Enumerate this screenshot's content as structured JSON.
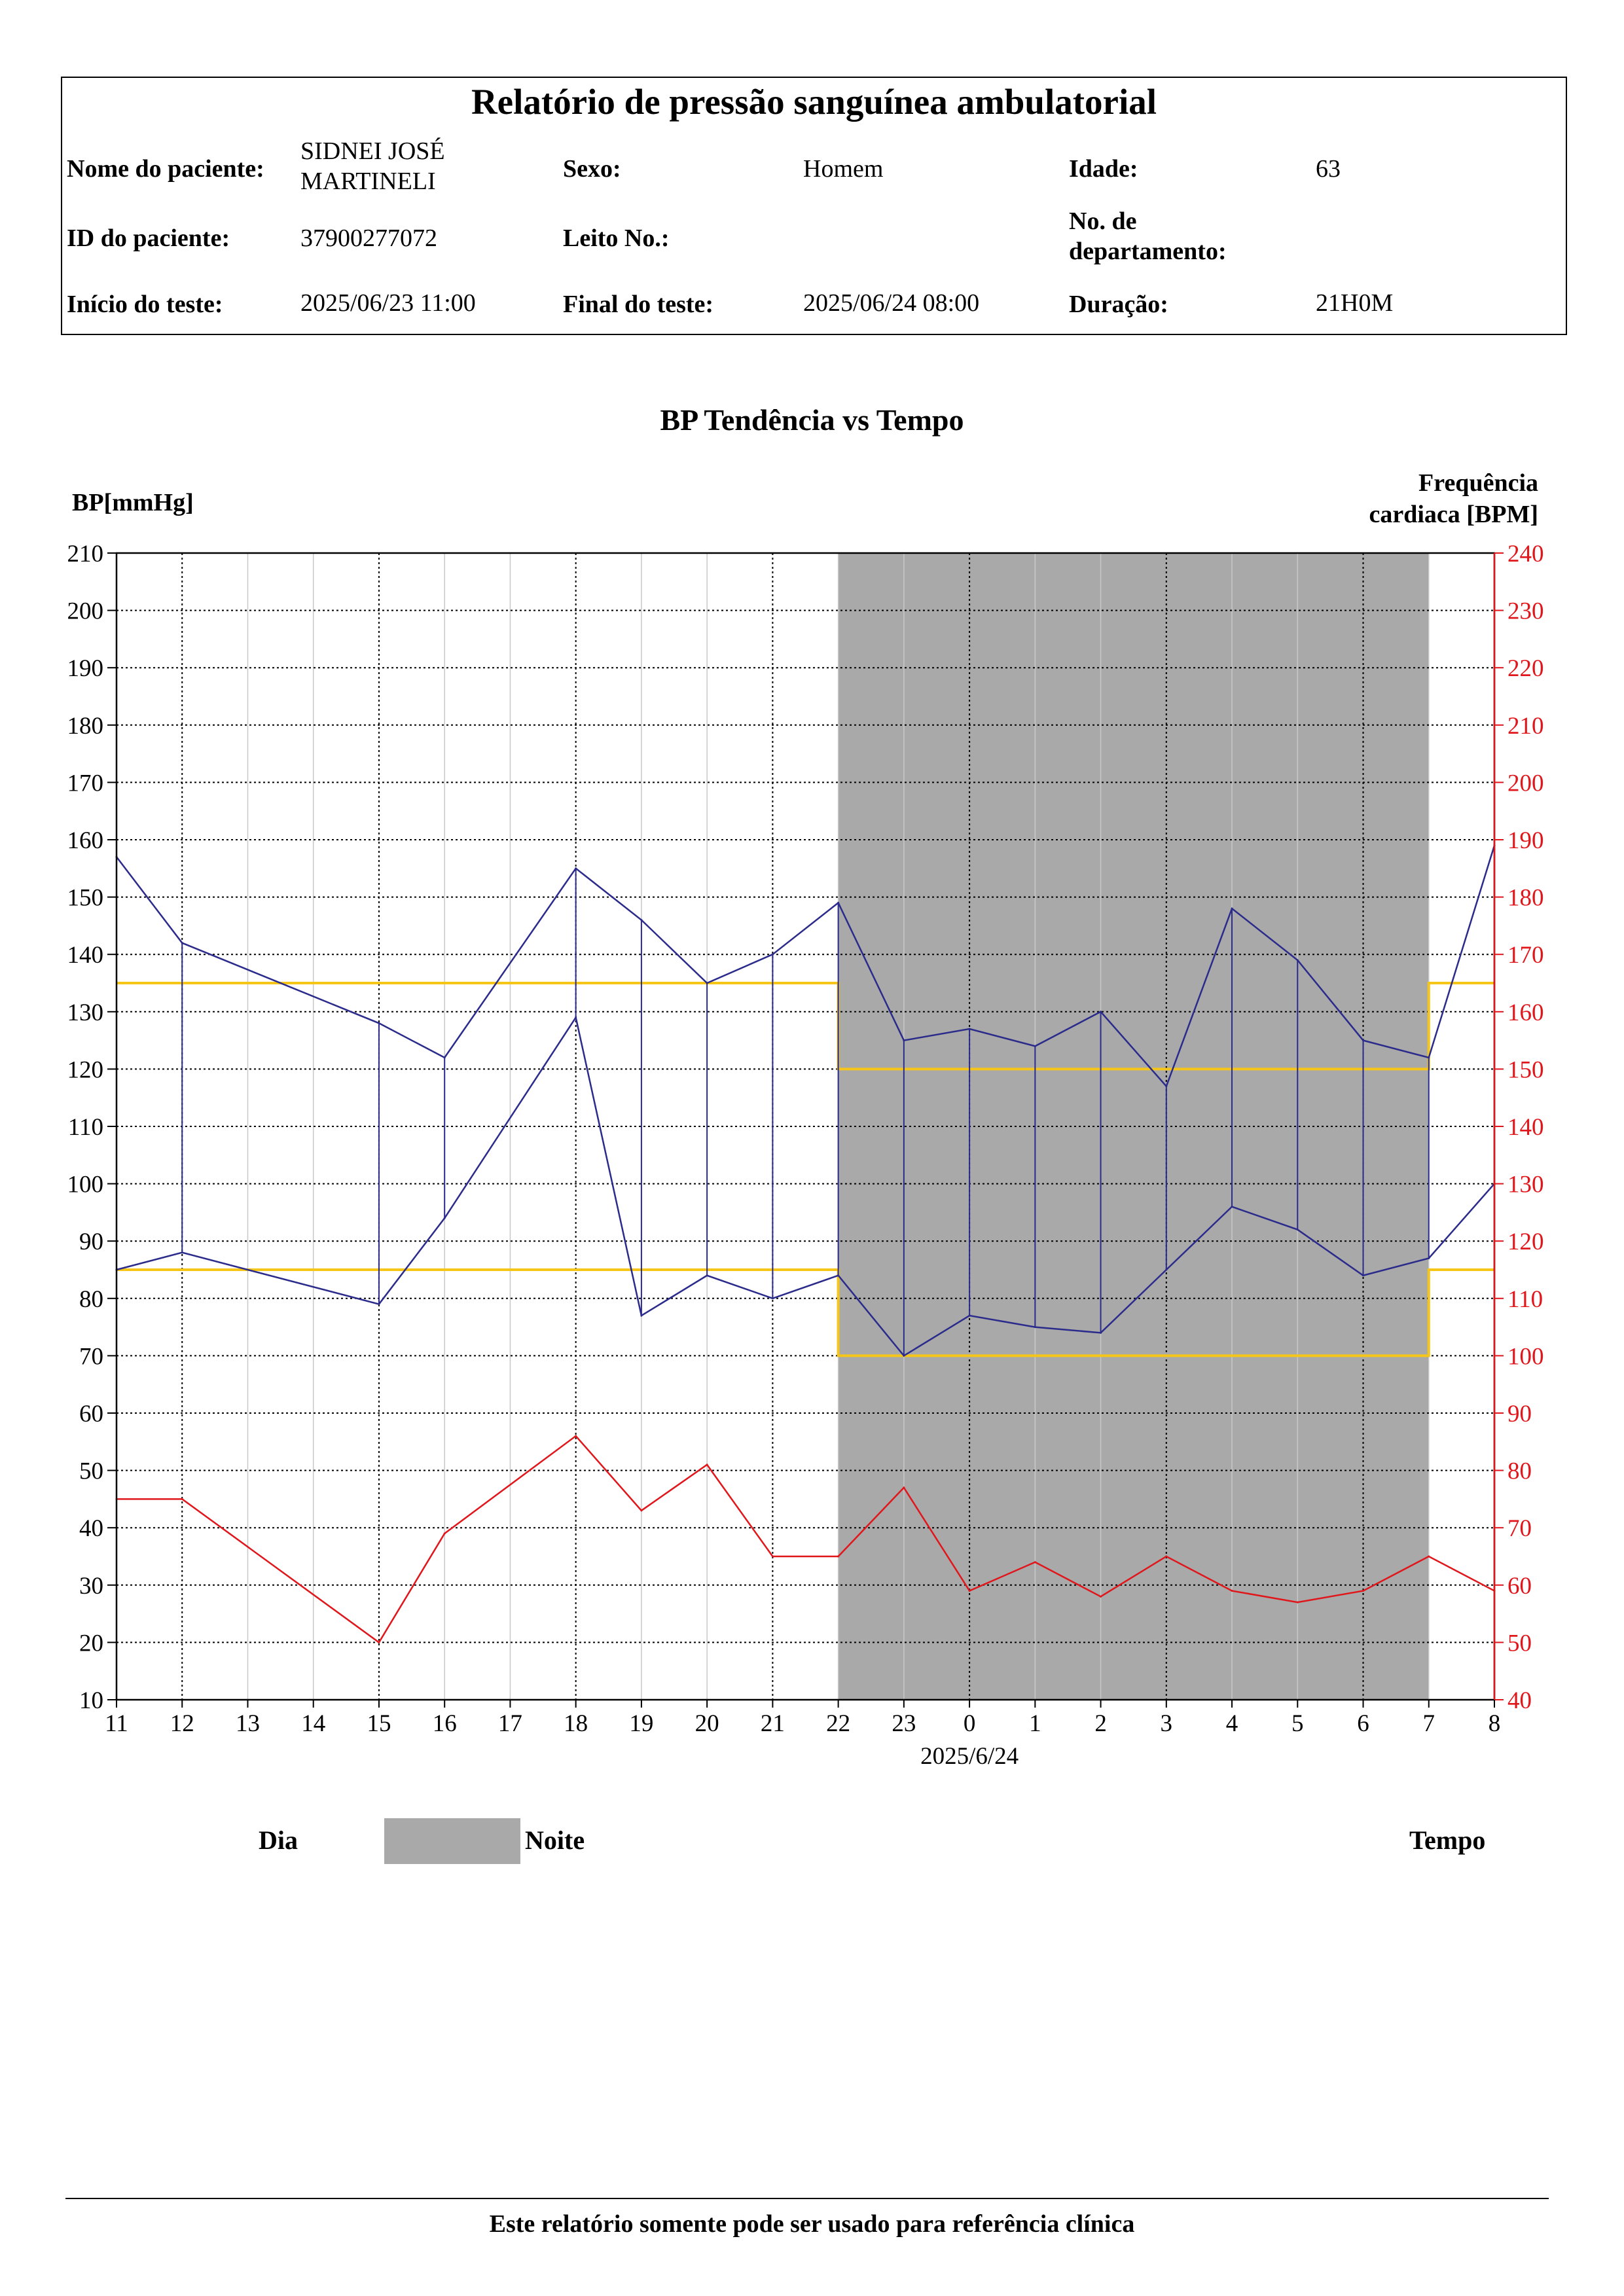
{
  "report": {
    "title": "Relatório de pressão sanguínea ambulatorial",
    "fields": {
      "patient_name_label": "Nome do paciente:",
      "patient_name_value": "SIDNEI JOSÉ MARTINELI",
      "sex_label": "Sexo:",
      "sex_value": "Homem",
      "age_label": "Idade:",
      "age_value": "63",
      "patient_id_label": "ID do paciente:",
      "patient_id_value": "37900277072",
      "bed_label": "Leito No.:",
      "bed_value": "",
      "department_label": "No. de departamento:",
      "department_value": "",
      "start_label": "Início do teste:",
      "start_value": "2025/06/23 11:00",
      "end_label": "Final do teste:",
      "end_value": "2025/06/24 08:00",
      "duration_label": "Duração:",
      "duration_value": "21H0M"
    }
  },
  "chart_data": {
    "type": "line",
    "title": "BP Tendência vs Tempo",
    "ylabel": "BP[mmHg]",
    "y2label": "Frequência cardiaca [BPM]",
    "xlabel": "",
    "date_label": "2025/6/24",
    "x_tick_labels": [
      "11",
      "12",
      "13",
      "14",
      "15",
      "16",
      "17",
      "18",
      "19",
      "20",
      "21",
      "22",
      "23",
      "0",
      "1",
      "2",
      "3",
      "4",
      "5",
      "6",
      "7",
      "8"
    ],
    "x_range_hours": [
      11,
      32
    ],
    "ylim": [
      10,
      210
    ],
    "y_ticks": [
      10,
      20,
      30,
      40,
      50,
      60,
      70,
      80,
      90,
      100,
      110,
      120,
      130,
      140,
      150,
      160,
      170,
      180,
      190,
      200,
      210
    ],
    "y2lim": [
      40,
      240
    ],
    "y2_ticks": [
      40,
      50,
      60,
      70,
      80,
      90,
      100,
      110,
      120,
      130,
      140,
      150,
      160,
      170,
      180,
      190,
      200,
      210,
      220,
      230,
      240
    ],
    "grid": true,
    "night_period_hours": [
      22,
      31
    ],
    "series": [
      {
        "key": "systolic",
        "axis": "left",
        "color": "#2b2b8c",
        "x": [
          11,
          12,
          15,
          16,
          18,
          19,
          20,
          21,
          22,
          23,
          24,
          25,
          26,
          27,
          28,
          29,
          30,
          31,
          32
        ],
        "values": [
          157,
          142,
          128,
          122,
          155,
          146,
          135,
          140,
          149,
          125,
          127,
          124,
          130,
          117,
          148,
          139,
          125,
          122,
          159
        ]
      },
      {
        "key": "diastolic",
        "axis": "left",
        "color": "#2b2b8c",
        "x": [
          11,
          12,
          15,
          16,
          18,
          19,
          20,
          21,
          22,
          23,
          24,
          25,
          26,
          27,
          28,
          29,
          30,
          31,
          32
        ],
        "values": [
          85,
          88,
          79,
          94,
          129,
          77,
          84,
          80,
          84,
          70,
          77,
          75,
          74,
          85,
          96,
          92,
          84,
          87,
          100
        ]
      },
      {
        "key": "heart_rate",
        "axis": "right",
        "color": "#e0161b",
        "x": [
          11,
          12,
          15,
          16,
          18,
          19,
          20,
          21,
          22,
          23,
          24,
          25,
          26,
          27,
          28,
          29,
          30,
          31,
          32
        ],
        "values": [
          75,
          75,
          50,
          69,
          86,
          73,
          81,
          65,
          65,
          77,
          59,
          64,
          58,
          65,
          59,
          57,
          59,
          65,
          59
        ]
      }
    ],
    "threshold_lines": {
      "color": "#f5c518",
      "day_systolic": 135,
      "day_diastolic": 85,
      "night_systolic": 120,
      "night_diastolic": 70
    },
    "colors": {
      "night_band": "#a9a9a9",
      "bp_axis": "#000000",
      "hr_axis": "#e0161b",
      "grid": "#000000",
      "day_grid": "#c8c8c8"
    }
  },
  "legend": {
    "day_label": "Dia",
    "night_label": "Noite",
    "time_label": "Tempo"
  },
  "footer": {
    "note": "Este relatório somente pode ser usado para referência clínica"
  }
}
